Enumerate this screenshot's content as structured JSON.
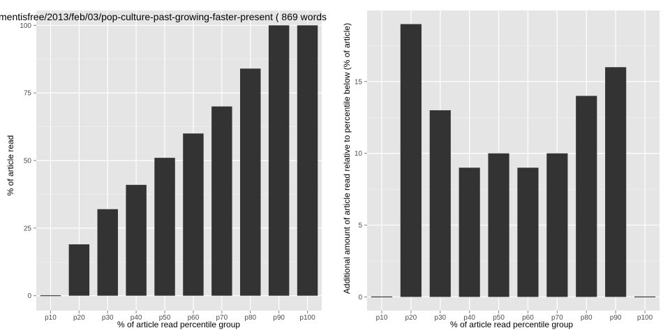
{
  "title": "mentisfree/2013/feb/03/pop-culture-past-growing-faster-present ( 869 words",
  "colors": {
    "panel_background": "#e5e5e5",
    "grid_major": "#ffffff",
    "grid_minor": "#f2f2f2",
    "bar_fill": "#333333",
    "tick_text": "#4d4d4d",
    "text": "#000000"
  },
  "chart_data": [
    {
      "type": "bar",
      "xlabel": "% of article read percentile group",
      "ylabel": "% of article read",
      "categories": [
        "p10",
        "p20",
        "p30",
        "p40",
        "p50",
        "p60",
        "p70",
        "p80",
        "p90",
        "p100"
      ],
      "values": [
        0,
        19,
        32,
        41,
        51,
        60,
        70,
        84,
        100,
        100
      ],
      "ylim": [
        -5.5,
        105.5
      ],
      "yticks": [
        0,
        25,
        50,
        75,
        100
      ],
      "ytick_labels": [
        "0",
        "25",
        "50",
        "75",
        "100"
      ],
      "grid": true
    },
    {
      "type": "bar",
      "xlabel": "% of article read percentile group",
      "ylabel": "Additional amount of article read relative to percentile below (% of article)",
      "categories": [
        "p10",
        "p20",
        "p30",
        "p40",
        "p50",
        "p60",
        "p70",
        "p80",
        "p90",
        "p100"
      ],
      "values": [
        0,
        19,
        13,
        9,
        10,
        9,
        10,
        14,
        16,
        0
      ],
      "ylim": [
        -0.95,
        19.95
      ],
      "yticks": [
        0,
        5,
        10,
        15
      ],
      "ytick_labels": [
        "0",
        "5",
        "10",
        "15"
      ],
      "grid": true
    }
  ]
}
